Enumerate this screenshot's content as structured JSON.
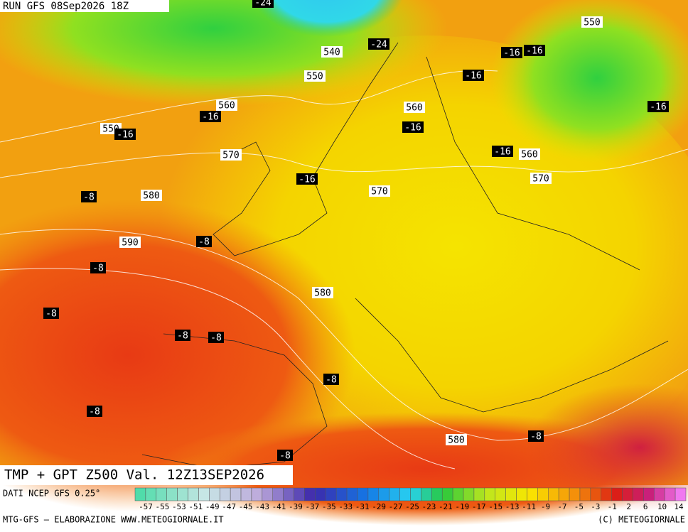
{
  "header": {
    "run": "RUN GFS 08Sep2026 18Z"
  },
  "map_labels": [
    "-24",
    "540",
    "-24",
    "550",
    "550",
    "-16",
    "-16",
    "-16",
    "560",
    "-16",
    "560",
    "-16",
    "-16",
    "550",
    "-16",
    "570",
    "-16",
    "560",
    "-16",
    "570",
    "570",
    "-8",
    "580",
    "590",
    "-8",
    "-8",
    "580",
    "-8",
    "-8",
    "-8",
    "-8",
    "-8",
    "580",
    "-8",
    "-8"
  ],
  "title": "TMP + GPT Z500 Val. 12Z13SEP2026",
  "colorbar": {
    "source": "DATI NCEP GFS 0.25°",
    "labels": [
      "-57",
      "-55",
      "-53",
      "-51",
      "-49",
      "-47",
      "-45",
      "-43",
      "-41",
      "-39",
      "-37",
      "-35",
      "-33",
      "-31",
      "-29",
      "-27",
      "-25",
      "-23",
      "-21",
      "-19",
      "-17",
      "-15",
      "-13",
      "-11",
      "-9",
      "-7",
      "-5",
      "-3",
      "-1",
      "2",
      "6",
      "10",
      "14"
    ]
  },
  "footer": {
    "left": "MTG-GFS — ELABORAZIONE WWW.METEOGIORNALE.IT",
    "right": "(C) METEOGIORNALE"
  }
}
